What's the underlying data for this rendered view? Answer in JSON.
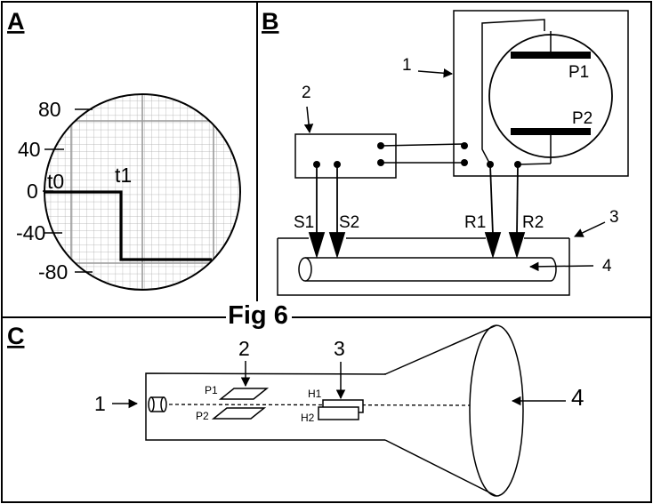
{
  "figure_title": "Fig 6",
  "panels": {
    "a": "A",
    "b": "B",
    "c": "C"
  },
  "panel_a": {
    "y_ticks": [
      "80",
      "40",
      "0",
      "-40",
      "-80"
    ],
    "time_labels": [
      "t0",
      "t1"
    ],
    "trace": {
      "levels": [
        "0",
        "-70"
      ],
      "step_at": "t1"
    }
  },
  "panel_b": {
    "callouts": [
      "1",
      "2",
      "3",
      "4"
    ],
    "plates": [
      "P1",
      "P2"
    ],
    "electrodes": [
      "S1",
      "S2",
      "R1",
      "R2"
    ]
  },
  "panel_c": {
    "callouts": [
      "1",
      "2",
      "3",
      "4"
    ],
    "plates_vertical": [
      "P1",
      "P2"
    ],
    "plates_horizontal": [
      "H1",
      "H2"
    ]
  }
}
